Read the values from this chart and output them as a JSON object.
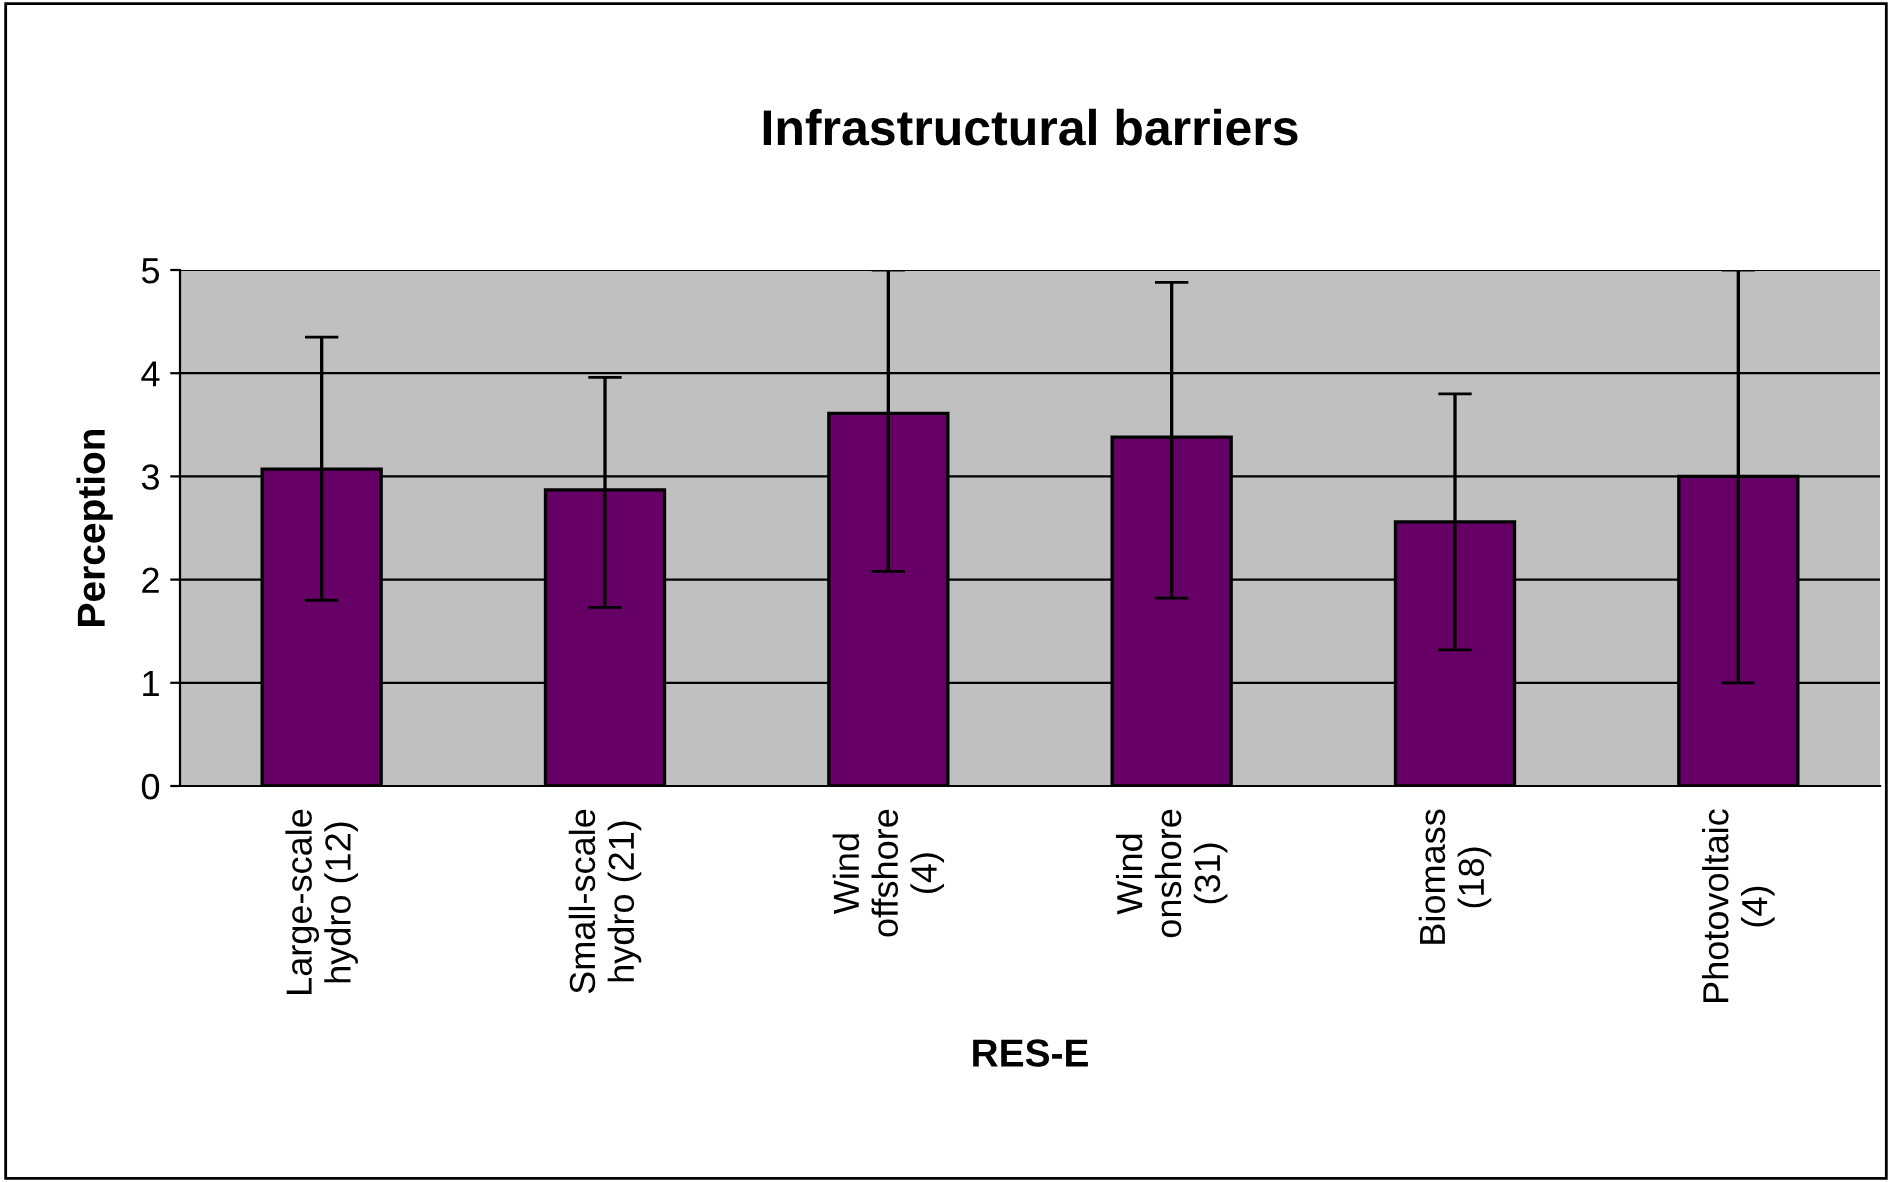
{
  "chart_data": {
    "type": "bar",
    "title": "Infrastructural barriers",
    "xlabel": "RES-E",
    "ylabel": "Perception",
    "categories": [
      "Large-scale\nhydro (12)",
      "Small-scale\nhydro (21)",
      "Wind\noffshore\n(4)",
      "Wind\nonshore\n(31)",
      "Biomass\n(18)",
      "Photovoltaic\n(4)"
    ],
    "values": [
      3.07,
      2.87,
      3.61,
      3.38,
      2.56,
      3.0
    ],
    "errors": [
      [
        1.8,
        4.35
      ],
      [
        1.73,
        3.96
      ],
      [
        2.08,
        5.0
      ],
      [
        1.82,
        4.88
      ],
      [
        1.32,
        3.8
      ],
      [
        1.0,
        5.0
      ]
    ],
    "color": "#660066",
    "ylim": [
      0,
      5
    ],
    "yticks": [
      0,
      1,
      2,
      3,
      4,
      5
    ],
    "grid": "y"
  }
}
